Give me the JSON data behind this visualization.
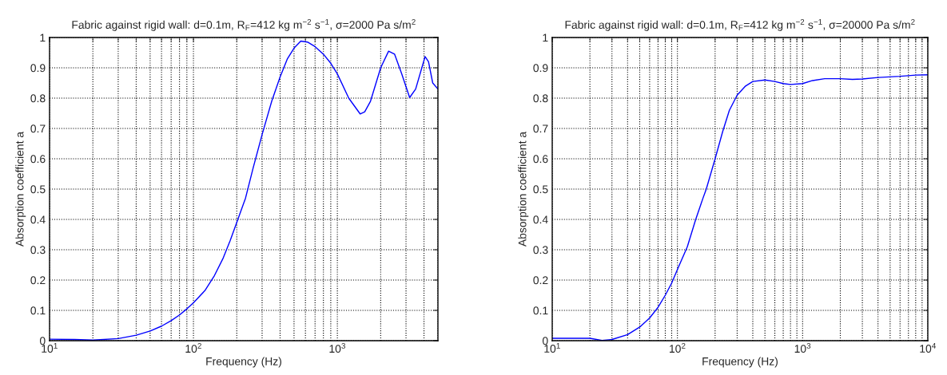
{
  "chart_data": [
    {
      "type": "line",
      "title": "Fabric against rigid wall: d=0.1m, R$_{F}$=412 kg m$^{−2}$ s$^{−1}$, σ=2000 Pa s/m$^{2}$",
      "xlabel": "Frequency (Hz)",
      "ylabel": "Absorption coefficient a",
      "log": "x",
      "grid": true,
      "marker": "none",
      "line_style": "solid",
      "xlim": [
        10,
        5000
      ],
      "xticks": [
        {
          "value": 10,
          "label": "10$^{1}$"
        },
        {
          "value": 100,
          "label": "10$^{2}$"
        },
        {
          "value": 1000,
          "label": "10$^{3}$"
        }
      ],
      "ylim": [
        0,
        1
      ],
      "yticks": [
        0,
        0.1,
        0.2,
        0.3,
        0.4,
        0.5,
        0.6,
        0.7,
        0.8,
        0.9,
        1
      ],
      "series": [
        {
          "color": "#0000ff",
          "x": [
            10,
            15,
            20,
            30,
            40,
            50,
            60,
            70,
            80,
            90,
            100,
            120,
            140,
            160,
            180,
            200,
            230,
            260,
            300,
            350,
            400,
            450,
            500,
            557,
            620,
            700,
            800,
            900,
            1000,
            1200,
            1440,
            1550,
            1700,
            2000,
            2270,
            2500,
            2800,
            3180,
            3500,
            4070,
            4300,
            4600,
            5000
          ],
          "values": [
            0.005,
            0.004,
            0.002,
            0.007,
            0.018,
            0.032,
            0.048,
            0.066,
            0.085,
            0.105,
            0.125,
            0.165,
            0.215,
            0.27,
            0.33,
            0.39,
            0.47,
            0.57,
            0.68,
            0.79,
            0.87,
            0.93,
            0.965,
            0.988,
            0.985,
            0.97,
            0.945,
            0.915,
            0.88,
            0.8,
            0.748,
            0.755,
            0.79,
            0.9,
            0.955,
            0.945,
            0.88,
            0.802,
            0.83,
            0.937,
            0.92,
            0.85,
            0.83
          ]
        }
      ]
    },
    {
      "type": "line",
      "title": "Fabric against rigid wall: d=0.1m, R$_{F}$=412 kg m$^{−2}$ s$^{−1}$, σ=20000 Pa s/m$^{2}$",
      "xlabel": "Frequency (Hz)",
      "ylabel": "Absorption coefficient a",
      "log": "x",
      "grid": true,
      "marker": "none",
      "line_style": "solid",
      "xlim": [
        10,
        10000
      ],
      "xticks": [
        {
          "value": 10,
          "label": "10$^{1}$"
        },
        {
          "value": 100,
          "label": "10$^{2}$"
        },
        {
          "value": 1000,
          "label": "10$^{3}$"
        },
        {
          "value": 10000,
          "label": "10$^{4}$"
        }
      ],
      "ylim": [
        0,
        1
      ],
      "yticks": [
        0,
        0.1,
        0.2,
        0.3,
        0.4,
        0.5,
        0.6,
        0.7,
        0.8,
        0.9,
        1
      ],
      "series": [
        {
          "color": "#0000ff",
          "x": [
            10,
            20,
            25,
            30,
            40,
            50,
            60,
            70,
            80,
            90,
            100,
            120,
            140,
            160,
            170,
            200,
            230,
            260,
            300,
            350,
            400,
            500,
            600,
            700,
            800,
            1000,
            1200,
            1500,
            2000,
            2500,
            3000,
            4000,
            6000,
            8000,
            10000
          ],
          "values": [
            0.008,
            0.008,
            0.001,
            0.004,
            0.02,
            0.045,
            0.075,
            0.11,
            0.15,
            0.19,
            0.235,
            0.31,
            0.4,
            0.47,
            0.5,
            0.6,
            0.69,
            0.76,
            0.81,
            0.84,
            0.855,
            0.86,
            0.855,
            0.848,
            0.845,
            0.848,
            0.858,
            0.864,
            0.864,
            0.862,
            0.863,
            0.868,
            0.872,
            0.876,
            0.877
          ]
        }
      ]
    }
  ]
}
